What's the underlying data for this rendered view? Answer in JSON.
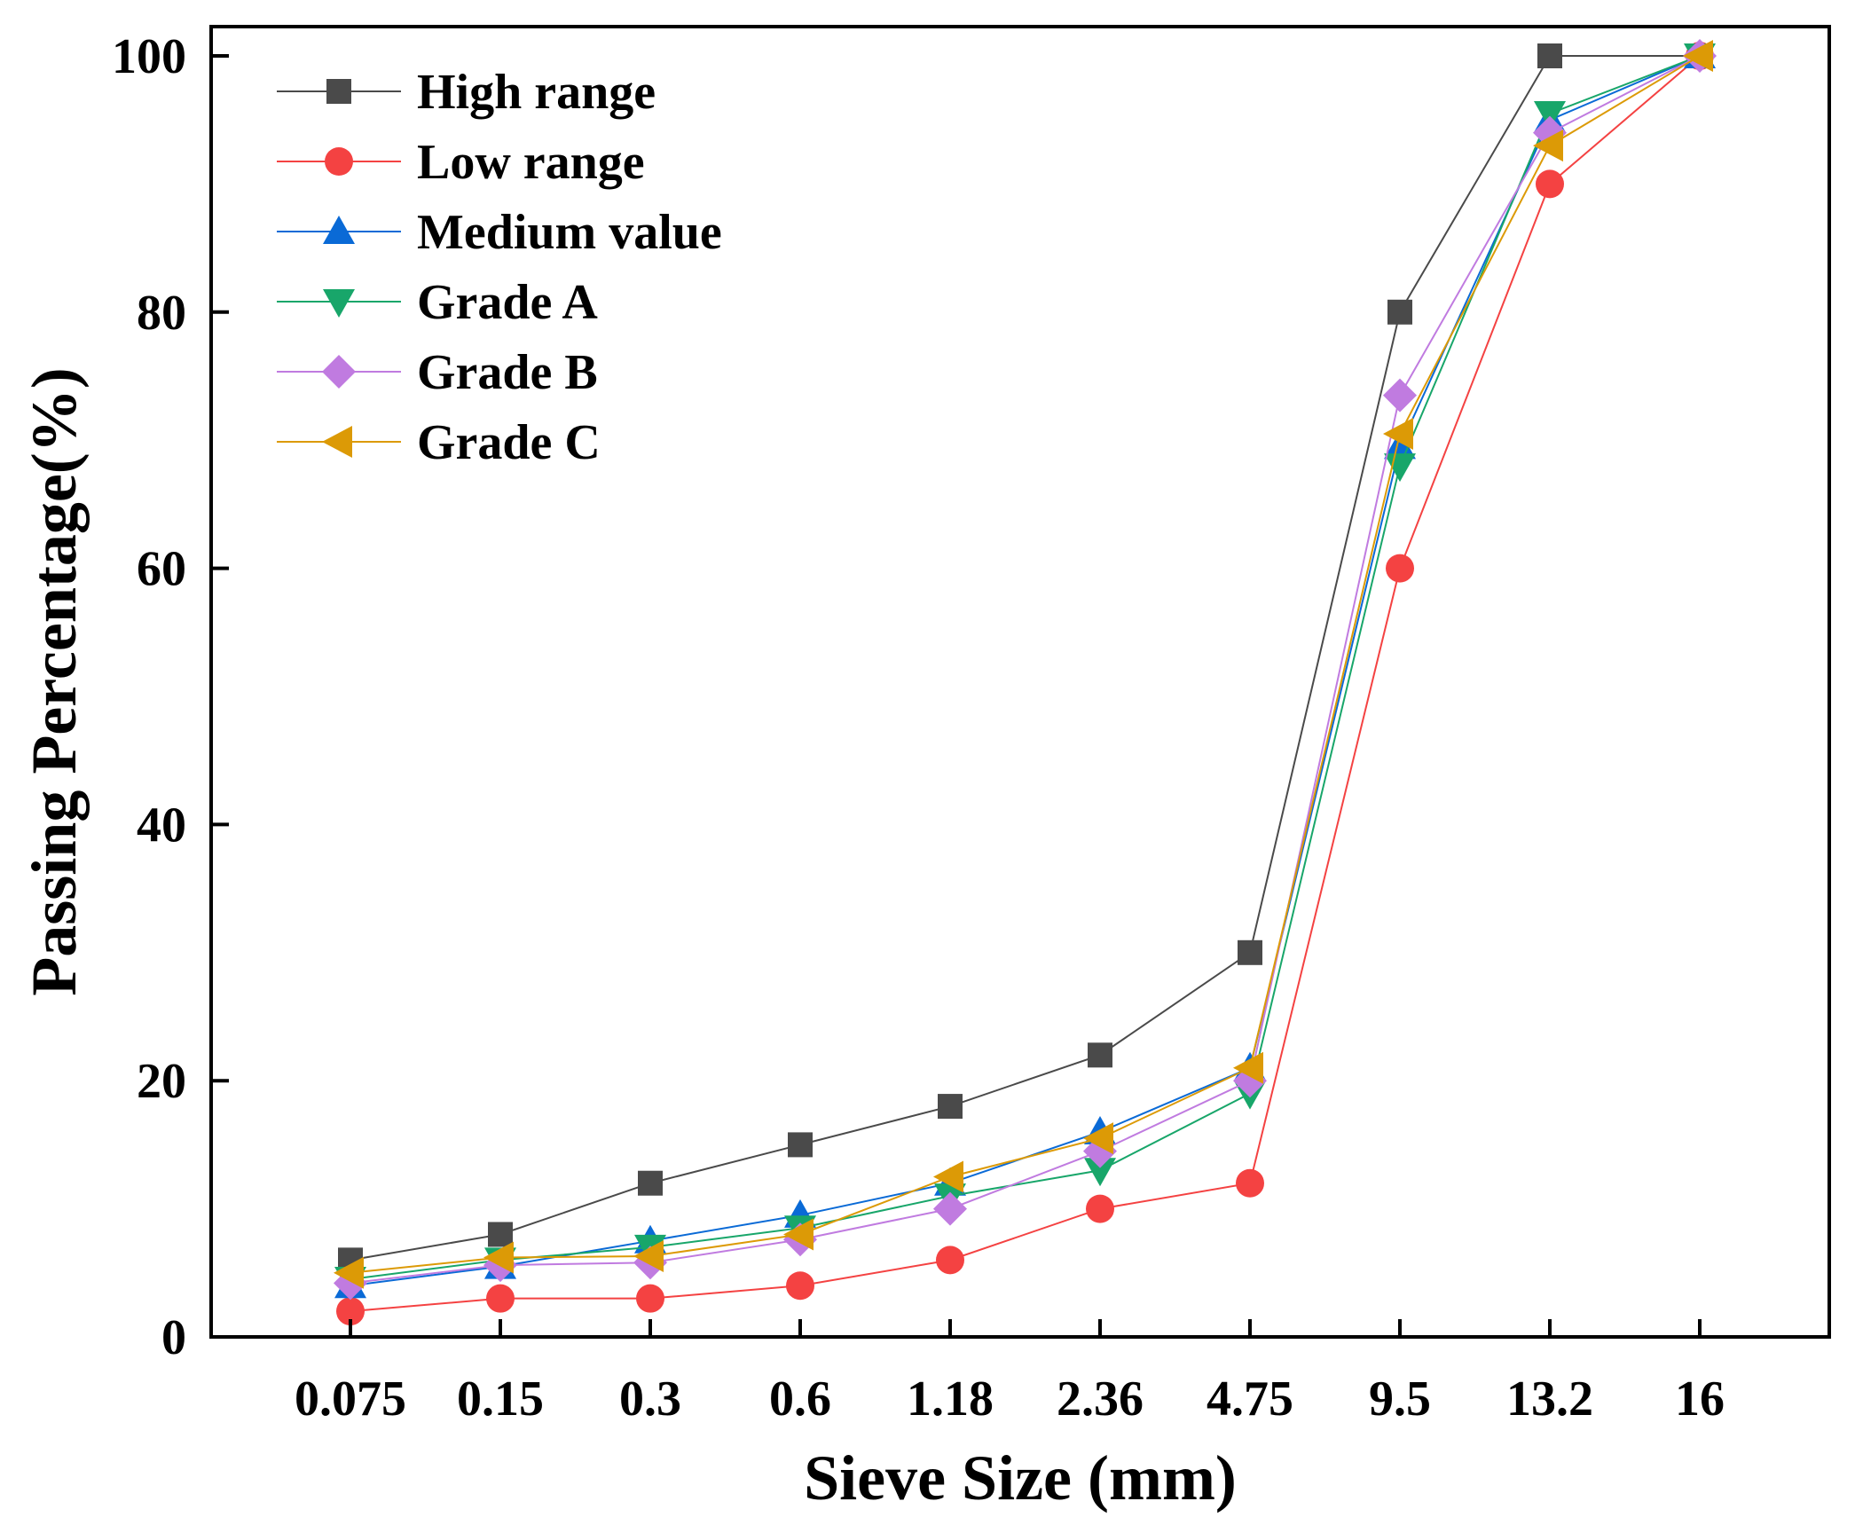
{
  "chart_data": {
    "type": "line",
    "title": "",
    "xlabel": "Sieve Size (mm)",
    "ylabel": "Passing Percentage(%)",
    "categories": [
      "0.075",
      "0.15",
      "0.3",
      "0.6",
      "1.18",
      "2.36",
      "4.75",
      "9.5",
      "13.2",
      "16"
    ],
    "ylim": [
      0,
      100
    ],
    "yticks": [
      "0",
      "20",
      "40",
      "60",
      "80",
      "100"
    ],
    "grid": false,
    "legend_position": "top-left",
    "series": [
      {
        "name": "High range",
        "marker": "square",
        "color": "#4a4a4a",
        "values": [
          6,
          8,
          12,
          15,
          18,
          22,
          30,
          80,
          100,
          100
        ]
      },
      {
        "name": "Low range",
        "marker": "circle",
        "color": "#f44242",
        "values": [
          2,
          3,
          3,
          4,
          6,
          10,
          12,
          60,
          90,
          100
        ]
      },
      {
        "name": "Medium value",
        "marker": "triangle-up",
        "color": "#0a6ad6",
        "values": [
          4,
          5.5,
          7.5,
          9.5,
          12,
          16,
          21,
          69.5,
          95,
          100
        ]
      },
      {
        "name": "Grade A",
        "marker": "triangle-down",
        "color": "#18a66a",
        "values": [
          4.5,
          6,
          7,
          8.5,
          11,
          13,
          19,
          68,
          95.5,
          100
        ]
      },
      {
        "name": "Grade B",
        "marker": "diamond",
        "color": "#c07be0",
        "values": [
          4.2,
          5.6,
          5.8,
          7.6,
          10,
          14.5,
          20,
          73.5,
          94,
          100
        ]
      },
      {
        "name": "Grade C",
        "marker": "triangle-left",
        "color": "#dc9a06",
        "values": [
          5,
          6.2,
          6.3,
          8,
          12.5,
          15.5,
          21,
          70.5,
          93,
          100
        ]
      }
    ]
  }
}
